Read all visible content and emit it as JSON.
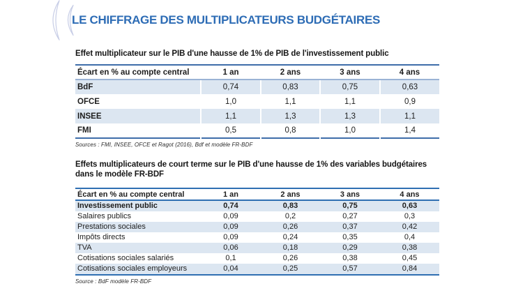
{
  "title": "LE CHIFFRAGE DES MULTIPLICATEURS BUDGÉTAIRES",
  "colors": {
    "title_blue": "#2d6cb5",
    "table_border_blue": "#2f6fb2",
    "header_rule_light": "#9ab3d5",
    "row_shade": "#dce6f1"
  },
  "table1": {
    "caption": "Effet multiplicateur sur le PIB d'une hausse de 1% de PIB de l'investissement public",
    "headers": [
      "Écart en % au compte central",
      "1 an",
      "2 ans",
      "3 ans",
      "4 ans"
    ],
    "rows": [
      {
        "label": "BdF",
        "values": [
          "0,74",
          "0,83",
          "0,75",
          "0,63"
        ],
        "shaded": true
      },
      {
        "label": "OFCE",
        "values": [
          "1,0",
          "1,1",
          "1,1",
          "0,9"
        ],
        "shaded": false
      },
      {
        "label": "INSEE",
        "values": [
          "1,1",
          "1,3",
          "1,3",
          "1,1"
        ],
        "shaded": true
      },
      {
        "label": "FMI",
        "values": [
          "0,5",
          "0,8",
          "1,0",
          "1,4"
        ],
        "shaded": false
      }
    ],
    "source": "Sources : FMI, INSEE, OFCE et Ragot (2016), Bdf et modèle FR-BDF"
  },
  "table2": {
    "caption_lines": [
      "Effets multiplicateurs de court terme sur le PIB d'une hausse de 1% des variables budgétaires",
      "dans le modèle FR-BDF"
    ],
    "headers": [
      "Écart en % au compte central",
      "1 an",
      "2 ans",
      "3 ans",
      "4 ans"
    ],
    "rows": [
      {
        "label": "Investissement public",
        "values": [
          "0,74",
          "0,83",
          "0,75",
          "0,63"
        ],
        "shaded": true,
        "bold": true
      },
      {
        "label": "Salaires publics",
        "values": [
          "0,09",
          "0,2",
          "0,27",
          "0,3"
        ],
        "shaded": false,
        "bold": false
      },
      {
        "label": "Prestations sociales",
        "values": [
          "0,09",
          "0,26",
          "0,37",
          "0,42"
        ],
        "shaded": true,
        "bold": false
      },
      {
        "label": "Impôts directs",
        "values": [
          "0,09",
          "0,24",
          "0,35",
          "0,4"
        ],
        "shaded": false,
        "bold": false
      },
      {
        "label": "TVA",
        "values": [
          "0,06",
          "0,18",
          "0,29",
          "0,38"
        ],
        "shaded": true,
        "bold": false
      },
      {
        "label": "Cotisations sociales salariés",
        "values": [
          "0,1",
          "0,26",
          "0,38",
          "0,45"
        ],
        "shaded": false,
        "bold": false
      },
      {
        "label": "Cotisations sociales employeurs",
        "values": [
          "0,04",
          "0,25",
          "0,57",
          "0,84"
        ],
        "shaded": true,
        "bold": false
      }
    ],
    "source": "Source : BdF modèle FR-BDF"
  }
}
